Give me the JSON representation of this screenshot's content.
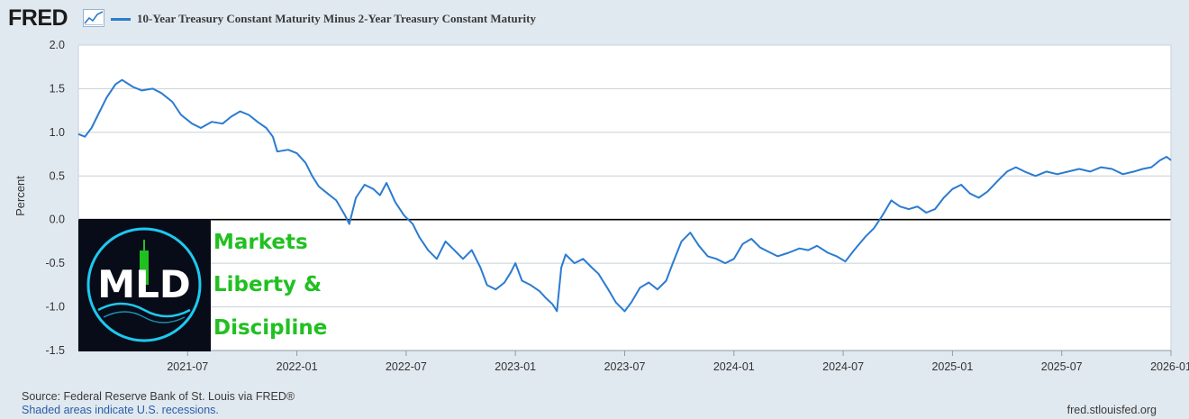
{
  "header": {
    "logo": "FRED",
    "legend_title": "10-Year Treasury Constant Maturity Minus 2-Year Treasury Constant Maturity",
    "series_color": "#2b7bd1"
  },
  "overlay": {
    "logo_letters": "MLD",
    "lines": [
      "Markets",
      "Liberty &",
      "Discipline"
    ],
    "text_color": "#21c021",
    "ring_color": "#1ec8f0"
  },
  "footer": {
    "source": "Source: Federal Reserve Bank of St. Louis via FRED®",
    "shade_note": "Shaded areas indicate U.S. recessions.",
    "url": "fred.stlouisfed.org"
  },
  "chart_data": {
    "type": "line",
    "title": "10-Year Treasury Constant Maturity Minus 2-Year Treasury Constant Maturity",
    "xlabel": "",
    "ylabel": "Percent",
    "ylim": [
      -1.5,
      2.0
    ],
    "yticks": [
      2.0,
      1.5,
      1.0,
      0.5,
      0.0,
      -0.5,
      -1.0,
      -1.5
    ],
    "ytick_labels": [
      "2.0",
      "1.5",
      "1.0",
      "0.5",
      "0.0",
      "-0.5",
      "-1.0",
      "-1.5"
    ],
    "xlim": [
      2021.0,
      2026.0
    ],
    "xticks": [
      2021.5,
      2022.0,
      2022.5,
      2023.0,
      2023.5,
      2024.0,
      2024.5,
      2025.0,
      2025.5,
      2026.0
    ],
    "xtick_labels": [
      "2021-07",
      "2022-01",
      "2022-07",
      "2023-01",
      "2023-07",
      "2024-01",
      "2024-07",
      "2025-01",
      "2025-07",
      "2026-01"
    ],
    "grid": true,
    "legend": "top-left",
    "series": [
      {
        "name": "10-Year Treasury Constant Maturity Minus 2-Year Treasury Constant Maturity",
        "color": "#2b7bd1",
        "points": [
          [
            2021.0,
            0.98
          ],
          [
            2021.03,
            0.95
          ],
          [
            2021.06,
            1.05
          ],
          [
            2021.09,
            1.2
          ],
          [
            2021.13,
            1.4
          ],
          [
            2021.17,
            1.55
          ],
          [
            2021.2,
            1.6
          ],
          [
            2021.25,
            1.52
          ],
          [
            2021.29,
            1.48
          ],
          [
            2021.34,
            1.5
          ],
          [
            2021.38,
            1.45
          ],
          [
            2021.43,
            1.35
          ],
          [
            2021.47,
            1.2
          ],
          [
            2021.52,
            1.1
          ],
          [
            2021.56,
            1.05
          ],
          [
            2021.61,
            1.12
          ],
          [
            2021.66,
            1.1
          ],
          [
            2021.7,
            1.18
          ],
          [
            2021.74,
            1.24
          ],
          [
            2021.78,
            1.2
          ],
          [
            2021.82,
            1.12
          ],
          [
            2021.86,
            1.05
          ],
          [
            2021.89,
            0.95
          ],
          [
            2021.91,
            0.78
          ],
          [
            2021.96,
            0.8
          ],
          [
            2022.0,
            0.76
          ],
          [
            2022.04,
            0.65
          ],
          [
            2022.07,
            0.5
          ],
          [
            2022.1,
            0.38
          ],
          [
            2022.14,
            0.3
          ],
          [
            2022.18,
            0.22
          ],
          [
            2022.22,
            0.05
          ],
          [
            2022.24,
            -0.05
          ],
          [
            2022.27,
            0.25
          ],
          [
            2022.31,
            0.4
          ],
          [
            2022.35,
            0.35
          ],
          [
            2022.38,
            0.28
          ],
          [
            2022.41,
            0.42
          ],
          [
            2022.45,
            0.2
          ],
          [
            2022.49,
            0.05
          ],
          [
            2022.53,
            -0.05
          ],
          [
            2022.56,
            -0.2
          ],
          [
            2022.6,
            -0.35
          ],
          [
            2022.64,
            -0.45
          ],
          [
            2022.68,
            -0.25
          ],
          [
            2022.72,
            -0.35
          ],
          [
            2022.76,
            -0.45
          ],
          [
            2022.8,
            -0.35
          ],
          [
            2022.84,
            -0.55
          ],
          [
            2022.87,
            -0.75
          ],
          [
            2022.91,
            -0.8
          ],
          [
            2022.95,
            -0.72
          ],
          [
            2022.98,
            -0.6
          ],
          [
            2023.0,
            -0.5
          ],
          [
            2023.03,
            -0.7
          ],
          [
            2023.07,
            -0.75
          ],
          [
            2023.11,
            -0.82
          ],
          [
            2023.14,
            -0.9
          ],
          [
            2023.17,
            -0.97
          ],
          [
            2023.19,
            -1.05
          ],
          [
            2023.21,
            -0.55
          ],
          [
            2023.23,
            -0.4
          ],
          [
            2023.27,
            -0.5
          ],
          [
            2023.31,
            -0.45
          ],
          [
            2023.35,
            -0.55
          ],
          [
            2023.38,
            -0.62
          ],
          [
            2023.42,
            -0.78
          ],
          [
            2023.46,
            -0.95
          ],
          [
            2023.5,
            -1.05
          ],
          [
            2023.53,
            -0.95
          ],
          [
            2023.57,
            -0.78
          ],
          [
            2023.61,
            -0.72
          ],
          [
            2023.65,
            -0.8
          ],
          [
            2023.69,
            -0.7
          ],
          [
            2023.72,
            -0.5
          ],
          [
            2023.76,
            -0.25
          ],
          [
            2023.8,
            -0.15
          ],
          [
            2023.84,
            -0.3
          ],
          [
            2023.88,
            -0.42
          ],
          [
            2023.92,
            -0.45
          ],
          [
            2023.96,
            -0.5
          ],
          [
            2024.0,
            -0.45
          ],
          [
            2024.04,
            -0.28
          ],
          [
            2024.08,
            -0.22
          ],
          [
            2024.12,
            -0.32
          ],
          [
            2024.16,
            -0.37
          ],
          [
            2024.2,
            -0.42
          ],
          [
            2024.25,
            -0.38
          ],
          [
            2024.3,
            -0.33
          ],
          [
            2024.34,
            -0.35
          ],
          [
            2024.38,
            -0.3
          ],
          [
            2024.43,
            -0.38
          ],
          [
            2024.47,
            -0.42
          ],
          [
            2024.51,
            -0.48
          ],
          [
            2024.55,
            -0.35
          ],
          [
            2024.6,
            -0.2
          ],
          [
            2024.64,
            -0.1
          ],
          [
            2024.68,
            0.05
          ],
          [
            2024.72,
            0.22
          ],
          [
            2024.76,
            0.15
          ],
          [
            2024.8,
            0.12
          ],
          [
            2024.84,
            0.15
          ],
          [
            2024.88,
            0.08
          ],
          [
            2024.92,
            0.12
          ],
          [
            2024.96,
            0.25
          ],
          [
            2025.0,
            0.35
          ],
          [
            2025.04,
            0.4
          ],
          [
            2025.08,
            0.3
          ],
          [
            2025.12,
            0.25
          ],
          [
            2025.16,
            0.32
          ],
          [
            2025.21,
            0.45
          ],
          [
            2025.25,
            0.55
          ],
          [
            2025.29,
            0.6
          ],
          [
            2025.33,
            0.55
          ],
          [
            2025.38,
            0.5
          ],
          [
            2025.43,
            0.55
          ],
          [
            2025.48,
            0.52
          ],
          [
            2025.53,
            0.55
          ],
          [
            2025.58,
            0.58
          ],
          [
            2025.63,
            0.55
          ],
          [
            2025.68,
            0.6
          ],
          [
            2025.73,
            0.58
          ],
          [
            2025.78,
            0.52
          ],
          [
            2025.83,
            0.55
          ],
          [
            2025.87,
            0.58
          ],
          [
            2025.91,
            0.6
          ],
          [
            2025.95,
            0.68
          ],
          [
            2025.98,
            0.72
          ],
          [
            2026.0,
            0.68
          ]
        ]
      }
    ]
  }
}
